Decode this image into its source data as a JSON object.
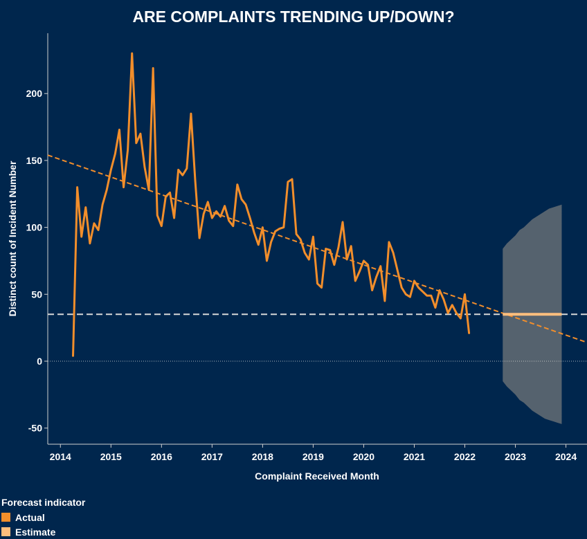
{
  "chart_data": {
    "type": "line",
    "title": "ARE COMPLAINTS TRENDING UP/DOWN?",
    "xlabel": "Complaint Received Month",
    "ylabel": "Distinct count of Incident Number",
    "x_ticks": [
      "2014",
      "2015",
      "2016",
      "2017",
      "2018",
      "2019",
      "2020",
      "2021",
      "2022",
      "2023",
      "2024"
    ],
    "y_ticks": [
      -50,
      0,
      50,
      100,
      150,
      200
    ],
    "xlim": [
      "2013-10",
      "2024-06"
    ],
    "ylim": [
      -62,
      245
    ],
    "series": [
      {
        "name": "Actual",
        "color": "#f28e2b",
        "x": [
          "2014-04",
          "2014-05",
          "2014-06",
          "2014-07",
          "2014-08",
          "2014-09",
          "2014-10",
          "2014-11",
          "2014-12",
          "2015-01",
          "2015-02",
          "2015-03",
          "2015-04",
          "2015-05",
          "2015-06",
          "2015-07",
          "2015-08",
          "2015-09",
          "2015-10",
          "2015-11",
          "2015-12",
          "2016-01",
          "2016-02",
          "2016-03",
          "2016-04",
          "2016-05",
          "2016-06",
          "2016-07",
          "2016-08",
          "2016-09",
          "2016-10",
          "2016-11",
          "2016-12",
          "2017-01",
          "2017-02",
          "2017-03",
          "2017-04",
          "2017-05",
          "2017-06",
          "2017-07",
          "2017-08",
          "2017-09",
          "2017-10",
          "2017-11",
          "2017-12",
          "2018-01",
          "2018-02",
          "2018-03",
          "2018-04",
          "2018-05",
          "2018-06",
          "2018-07",
          "2018-08",
          "2018-09",
          "2018-10",
          "2018-11",
          "2018-12",
          "2019-01",
          "2019-02",
          "2019-03",
          "2019-04",
          "2019-05",
          "2019-06",
          "2019-07",
          "2019-08",
          "2019-09",
          "2019-10",
          "2019-11",
          "2019-12",
          "2020-01",
          "2020-02",
          "2020-03",
          "2020-04",
          "2020-05",
          "2020-06",
          "2020-07",
          "2020-08",
          "2020-09",
          "2020-10",
          "2020-11",
          "2020-12",
          "2021-01",
          "2021-02",
          "2021-03",
          "2021-04",
          "2021-05",
          "2021-06",
          "2021-07",
          "2021-08",
          "2021-09",
          "2021-10",
          "2021-11",
          "2021-12",
          "2022-01",
          "2022-02"
        ],
        "values": [
          4,
          130,
          93,
          115,
          88,
          103,
          98,
          117,
          128,
          143,
          155,
          173,
          130,
          158,
          230,
          163,
          170,
          145,
          128,
          219,
          109,
          101,
          123,
          126,
          107,
          143,
          139,
          144,
          185,
          135,
          92,
          110,
          119,
          107,
          112,
          108,
          116,
          105,
          101,
          132,
          121,
          117,
          107,
          96,
          87,
          100,
          75,
          89,
          97,
          99,
          100,
          134,
          136,
          95,
          91,
          81,
          76,
          93,
          58,
          55,
          84,
          83,
          72,
          85,
          104,
          76,
          86,
          60,
          67,
          75,
          72,
          53,
          63,
          71,
          45,
          89,
          81,
          68,
          55,
          50,
          48,
          60,
          55,
          52,
          49,
          49,
          40,
          53,
          46,
          36,
          42,
          36,
          32,
          50,
          21
        ]
      }
    ],
    "forecast": {
      "name": "Estimate",
      "color": "#ffbe7d",
      "x": [
        "2022-10",
        "2023-12"
      ],
      "value": 35,
      "band": {
        "color": "#5a6570",
        "x": [
          "2022-10",
          "2022-11",
          "2022-12",
          "2023-01",
          "2023-02",
          "2023-03",
          "2023-04",
          "2023-05",
          "2023-06",
          "2023-07",
          "2023-08",
          "2023-09",
          "2023-10",
          "2023-11",
          "2023-12"
        ],
        "upper": [
          84,
          88,
          91,
          94,
          98,
          100,
          103,
          106,
          108,
          110,
          112,
          114,
          115,
          116,
          117
        ],
        "lower": [
          -15,
          -19,
          -22,
          -25,
          -29,
          -31,
          -34,
          -37,
          -39,
          -41,
          -43,
          -44,
          -45,
          -46,
          -47
        ]
      }
    },
    "trend_line": {
      "color": "#f28e2b",
      "points": [
        [
          "2013-10",
          154
        ],
        [
          "2024-06",
          14
        ]
      ]
    },
    "reference_line": {
      "value": 35,
      "color": "#d9d9d9"
    },
    "zero_line": {
      "value": 0,
      "color": "#d9d9d9"
    },
    "grid": false,
    "legend": {
      "title": "Forecast indicator",
      "placement": "bottom-left",
      "items": [
        {
          "label": "Actual",
          "color": "#f28e2b"
        },
        {
          "label": "Estimate",
          "color": "#ffbe7d"
        }
      ]
    }
  }
}
